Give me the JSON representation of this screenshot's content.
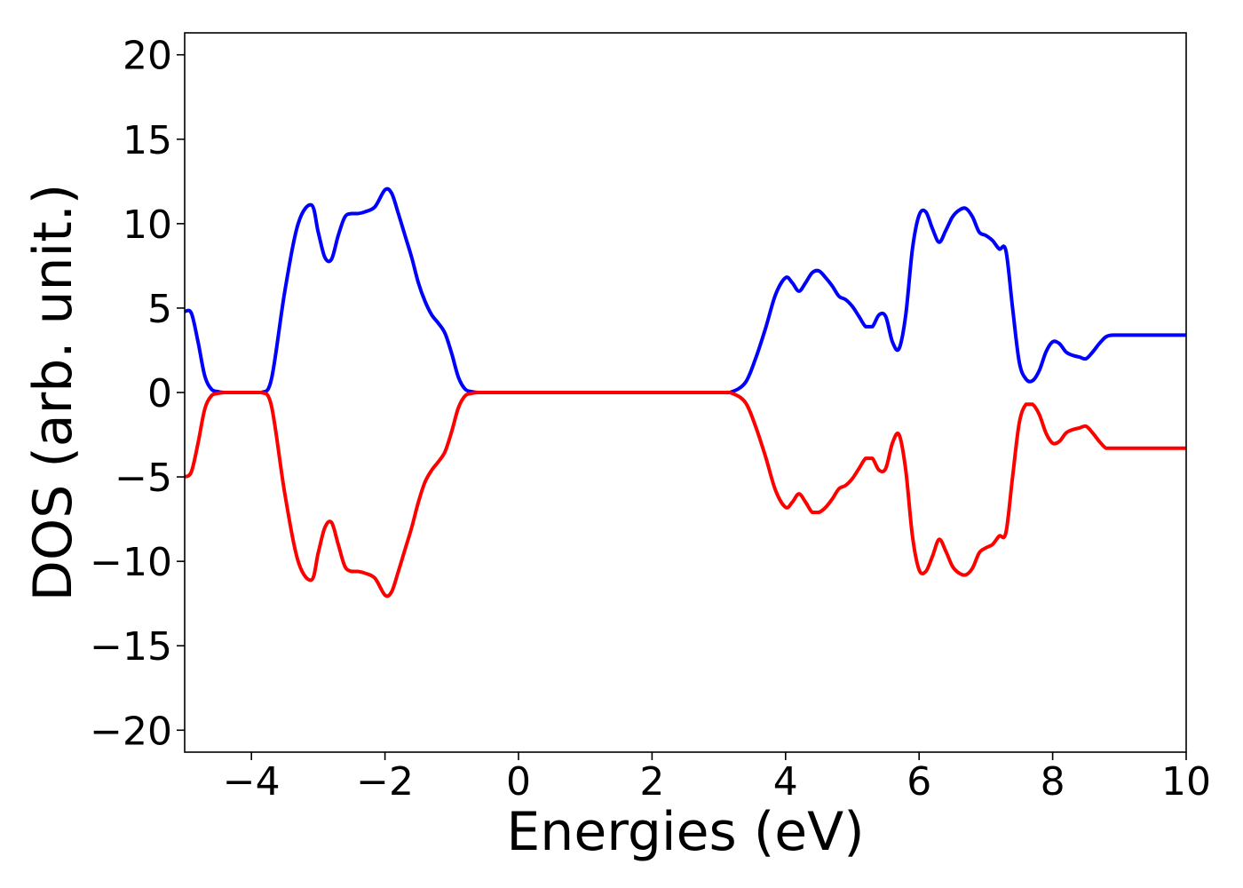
{
  "chart_data": {
    "type": "line",
    "xlabel": "Energies (eV)",
    "ylabel": "DOS (arb. unit.)",
    "xlim": [
      -5,
      10
    ],
    "ylim": [
      -21.3,
      21.3
    ],
    "grid": false,
    "x_ticks": [
      -4,
      -2,
      0,
      2,
      4,
      6,
      8,
      10
    ],
    "x_tick_labels": [
      "−4",
      "−2",
      "0",
      "2",
      "4",
      "6",
      "8",
      "10"
    ],
    "y_ticks": [
      -20,
      -15,
      -10,
      -5,
      0,
      5,
      10,
      15,
      20
    ],
    "y_tick_labels": [
      "−20",
      "−15",
      "−10",
      "−5",
      "0",
      "5",
      "10",
      "15",
      "20"
    ],
    "series": [
      {
        "color": "#0000ff",
        "x": [
          -5.0,
          -4.9,
          -4.8,
          -4.7,
          -4.6,
          -4.5,
          -4.4,
          -4.2,
          -4.0,
          -3.85,
          -3.7,
          -3.5,
          -3.3,
          -3.1,
          -3.0,
          -2.9,
          -2.8,
          -2.7,
          -2.6,
          -2.5,
          -2.4,
          -2.3,
          -2.15,
          -2.0,
          -1.9,
          -1.8,
          -1.7,
          -1.6,
          -1.5,
          -1.4,
          -1.3,
          -1.2,
          -1.1,
          -1.0,
          -0.9,
          -0.8,
          -0.7,
          -0.6,
          -0.5,
          0.0,
          1.0,
          2.0,
          3.0,
          3.2,
          3.4,
          3.55,
          3.7,
          3.85,
          4.0,
          4.1,
          4.2,
          4.3,
          4.4,
          4.5,
          4.6,
          4.7,
          4.8,
          4.9,
          5.0,
          5.1,
          5.2,
          5.3,
          5.4,
          5.5,
          5.6,
          5.7,
          5.8,
          5.9,
          6.0,
          6.1,
          6.2,
          6.3,
          6.4,
          6.5,
          6.6,
          6.7,
          6.8,
          6.9,
          7.0,
          7.1,
          7.2,
          7.3,
          7.4,
          7.5,
          7.6,
          7.7,
          7.8,
          7.9,
          8.0,
          8.1,
          8.2,
          8.3,
          8.4,
          8.5,
          8.6,
          8.7,
          8.8,
          8.9,
          9.0,
          9.1,
          9.2,
          9.3,
          9.4,
          9.5,
          9.6,
          9.7,
          9.8,
          9.9,
          10.0
        ],
        "y": [
          4.8,
          4.7,
          3.0,
          1.0,
          0.2,
          0.05,
          0.0,
          0.0,
          0.0,
          0.0,
          0.8,
          6.0,
          10.0,
          11.1,
          9.5,
          8.0,
          7.9,
          9.3,
          10.4,
          10.6,
          10.6,
          10.7,
          11.0,
          12.0,
          11.8,
          10.6,
          9.3,
          8.0,
          6.5,
          5.4,
          4.6,
          4.1,
          3.5,
          2.3,
          0.9,
          0.2,
          0.05,
          0.0,
          0.0,
          0.0,
          0.0,
          0.0,
          0.0,
          0.05,
          0.6,
          2.0,
          3.8,
          5.8,
          6.8,
          6.5,
          6.0,
          6.5,
          7.1,
          7.2,
          6.8,
          6.3,
          5.7,
          5.5,
          5.1,
          4.5,
          3.9,
          3.9,
          4.6,
          4.5,
          3.0,
          2.6,
          4.6,
          8.5,
          10.5,
          10.7,
          9.7,
          8.9,
          9.6,
          10.4,
          10.8,
          10.9,
          10.4,
          9.5,
          9.3,
          9.0,
          8.5,
          8.4,
          5.0,
          1.8,
          0.8,
          0.7,
          1.3,
          2.4,
          3.0,
          2.9,
          2.4,
          2.2,
          2.1,
          2.0,
          2.4,
          2.9,
          3.3,
          3.4,
          3.4,
          3.4,
          3.4,
          3.4,
          3.4,
          3.4,
          3.4,
          3.4,
          3.4,
          3.4,
          3.4
        ]
      },
      {
        "color": "#ff0000",
        "x": [
          -5.0,
          -4.9,
          -4.8,
          -4.7,
          -4.6,
          -4.5,
          -4.4,
          -4.2,
          -4.0,
          -3.85,
          -3.7,
          -3.5,
          -3.3,
          -3.1,
          -3.0,
          -2.9,
          -2.8,
          -2.7,
          -2.6,
          -2.5,
          -2.4,
          -2.3,
          -2.15,
          -2.0,
          -1.9,
          -1.8,
          -1.7,
          -1.6,
          -1.5,
          -1.4,
          -1.3,
          -1.2,
          -1.1,
          -1.0,
          -0.9,
          -0.8,
          -0.7,
          -0.6,
          -0.5,
          0.0,
          1.0,
          2.0,
          3.0,
          3.2,
          3.4,
          3.55,
          3.7,
          3.85,
          4.0,
          4.1,
          4.2,
          4.3,
          4.4,
          4.5,
          4.6,
          4.7,
          4.8,
          4.9,
          5.0,
          5.1,
          5.2,
          5.3,
          5.4,
          5.5,
          5.6,
          5.7,
          5.8,
          5.9,
          6.0,
          6.1,
          6.2,
          6.3,
          6.4,
          6.5,
          6.6,
          6.7,
          6.8,
          6.9,
          7.0,
          7.1,
          7.2,
          7.3,
          7.4,
          7.5,
          7.6,
          7.7,
          7.8,
          7.9,
          8.0,
          8.1,
          8.2,
          8.3,
          8.4,
          8.5,
          8.6,
          8.7,
          8.8,
          8.9,
          9.0,
          9.1,
          9.2,
          9.3,
          9.4,
          9.5,
          9.6,
          9.7,
          9.8,
          9.9,
          10.0
        ],
        "y": [
          -5.0,
          -4.7,
          -3.0,
          -1.0,
          -0.2,
          -0.05,
          0.0,
          0.0,
          0.0,
          0.0,
          -0.8,
          -6.0,
          -10.0,
          -11.1,
          -9.5,
          -8.0,
          -7.7,
          -9.0,
          -10.3,
          -10.6,
          -10.6,
          -10.7,
          -11.0,
          -12.0,
          -11.8,
          -10.6,
          -9.3,
          -8.0,
          -6.5,
          -5.3,
          -4.6,
          -4.1,
          -3.5,
          -2.3,
          -0.9,
          -0.2,
          -0.05,
          0.0,
          0.0,
          0.0,
          0.0,
          0.0,
          0.0,
          -0.05,
          -0.6,
          -2.0,
          -3.8,
          -5.8,
          -6.8,
          -6.5,
          -6.0,
          -6.5,
          -7.1,
          -7.1,
          -6.8,
          -6.3,
          -5.7,
          -5.5,
          -5.1,
          -4.5,
          -3.9,
          -3.9,
          -4.6,
          -4.5,
          -3.0,
          -2.5,
          -4.6,
          -8.5,
          -10.5,
          -10.6,
          -9.7,
          -8.7,
          -9.4,
          -10.3,
          -10.7,
          -10.8,
          -10.4,
          -9.5,
          -9.2,
          -9.0,
          -8.5,
          -8.3,
          -5.0,
          -1.8,
          -0.7,
          -0.7,
          -1.3,
          -2.4,
          -3.0,
          -2.9,
          -2.4,
          -2.2,
          -2.1,
          -2.0,
          -2.4,
          -2.9,
          -3.3,
          -3.3,
          -3.3,
          -3.3,
          -3.3,
          -3.3,
          -3.3,
          -3.3,
          -3.3,
          -3.3,
          -3.3,
          -3.3,
          -3.3
        ]
      }
    ]
  }
}
